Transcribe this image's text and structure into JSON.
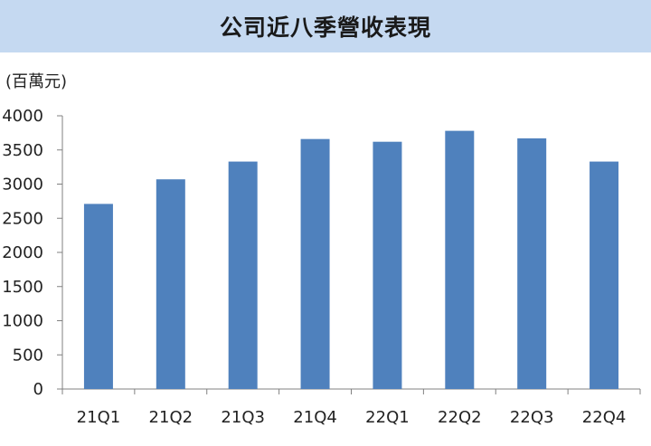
{
  "title": "公司近八季營收表現",
  "unit_label": "(百萬元)",
  "colors": {
    "header_background": "#c5d9f1",
    "bar": "#4f81bd",
    "axis": "#808080"
  },
  "chart_data": {
    "type": "bar",
    "title": "公司近八季營收表現",
    "ylabel": "(百萬元)",
    "xlabel": "",
    "categories": [
      "21Q1",
      "21Q2",
      "21Q3",
      "21Q4",
      "22Q1",
      "22Q2",
      "22Q3",
      "22Q4"
    ],
    "values": [
      2710,
      3070,
      3330,
      3660,
      3620,
      3780,
      3670,
      3330
    ],
    "ylim": [
      0,
      4000
    ],
    "yticks": [
      "0",
      "500",
      "1000",
      "1500",
      "2000",
      "2500",
      "3000",
      "3500",
      "4000"
    ],
    "grid": false,
    "legend": "none"
  }
}
